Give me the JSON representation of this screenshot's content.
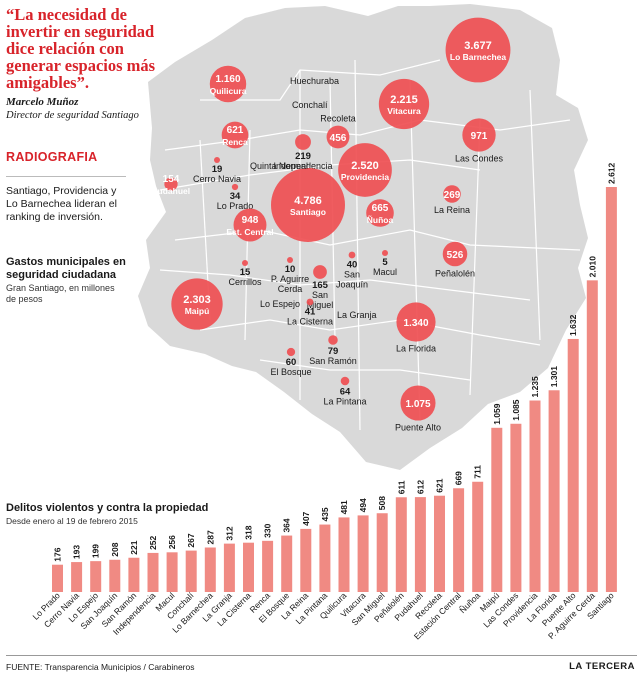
{
  "quote": "“La necesidad de invertir en seguridad dice relación con generar espacios más amigables”.",
  "author": "Marcelo Muñoz",
  "role": "Director de seguridad Santiago",
  "section": "RADIOGRAFIA",
  "intro": "Santiago, Providencia y Lo Barnechea lideran el ranking de inversión.",
  "spending_title": "Gastos municipales en seguridad ciudadana",
  "spending_sub": "Gran Santiago, en millones de pesos",
  "chart_title": "Delitos violentos y contra la propiedad",
  "chart_sub": "Desde enero al 19 de febrero 2015",
  "source": "FUENTE: Transparencia Municipios / Carabineros",
  "brand": "LA TERCERA",
  "colors": {
    "accent": "#d8232a",
    "bubble": "#ef4f52",
    "bar": "#f08a83",
    "map": "#d9d9d9"
  },
  "chart_data": [
    {
      "type": "bar",
      "title": "Delitos violentos y contra la propiedad",
      "subtitle": "Desde enero al 19 de febrero 2015",
      "categories": [
        "Lo Prado",
        "Cerro Navia",
        "Lo Espejo",
        "San Joaquín",
        "San Ramón",
        "Independencia",
        "Macul",
        "Conchalí",
        "Lo Barnechea",
        "La Granja",
        "La Cisterna",
        "Renca",
        "El Bosque",
        "La Reina",
        "La Pintana",
        "Quilicura",
        "Vitacura",
        "San Miguel",
        "Peñalolén",
        "Pudahuel",
        "Recoleta",
        "Estación Central",
        "Ñuñoa",
        "Maipú",
        "Las Condes",
        "Providencia",
        "La Florida",
        "Puente Alto",
        "P. Aguirre Cerda",
        "Santiago"
      ],
      "values": [
        176,
        193,
        199,
        208,
        221,
        252,
        256,
        267,
        287,
        312,
        318,
        330,
        364,
        407,
        435,
        481,
        494,
        508,
        611,
        612,
        621,
        669,
        711,
        1059,
        1085,
        1235,
        1301,
        1632,
        2010,
        2612
      ],
      "value_labels": [
        "176",
        "193",
        "199",
        "208",
        "221",
        "252",
        "256",
        "267",
        "287",
        "312",
        "318",
        "330",
        "364",
        "407",
        "435",
        "481",
        "494",
        "508",
        "611",
        "612",
        "621",
        "669",
        "711",
        "1.059",
        "1.085",
        "1.235",
        "1.301",
        "1.632",
        "2.010",
        "2.612"
      ],
      "ylim": [
        0,
        2612
      ],
      "grid": false,
      "legend": "none"
    },
    {
      "type": "bubble-map",
      "title": "Gastos municipales en seguridad ciudadana",
      "subtitle": "Gran Santiago, en millones de pesos",
      "points": [
        {
          "name": "Lo Barnechea",
          "value": 3677,
          "label": "3.677"
        },
        {
          "name": "Quilicura",
          "value": 1160,
          "label": "1.160"
        },
        {
          "name": "Vitacura",
          "value": 2215,
          "label": "2.215"
        },
        {
          "name": "Renca",
          "value": 621,
          "label": "621"
        },
        {
          "name": "Independencia",
          "value": 219,
          "label": "219"
        },
        {
          "name": "Recoleta",
          "value": 456,
          "label": "456"
        },
        {
          "name": "Las Condes",
          "value": 971,
          "label": "971"
        },
        {
          "name": "Cerro Navia",
          "value": 19,
          "label": "19"
        },
        {
          "name": "Pudahuel",
          "value": 154,
          "label": "154"
        },
        {
          "name": "Lo Prado",
          "value": 34,
          "label": "34"
        },
        {
          "name": "Providencia",
          "value": 2520,
          "label": "2.520"
        },
        {
          "name": "Santiago",
          "value": 4786,
          "label": "4.786"
        },
        {
          "name": "Ñuñoa",
          "value": 665,
          "label": "665"
        },
        {
          "name": "La Reina",
          "value": 269,
          "label": "269"
        },
        {
          "name": "Est. Central",
          "value": 948,
          "label": "948"
        },
        {
          "name": "Cerrillos",
          "value": 15,
          "label": "15"
        },
        {
          "name": "P. Aguirre Cerda",
          "value": 10,
          "label": "10"
        },
        {
          "name": "San Miguel",
          "value": 165,
          "label": "165"
        },
        {
          "name": "San Joaquín",
          "value": 40,
          "label": "40"
        },
        {
          "name": "Macul",
          "value": 5,
          "label": "5"
        },
        {
          "name": "Peñalolén",
          "value": 526,
          "label": "526"
        },
        {
          "name": "Maipú",
          "value": 2303,
          "label": "2.303"
        },
        {
          "name": "La Cisterna",
          "value": 41,
          "label": "41"
        },
        {
          "name": "San Ramón",
          "value": 79,
          "label": "79"
        },
        {
          "name": "La Florida",
          "value": 1340,
          "label": "1.340"
        },
        {
          "name": "El Bosque",
          "value": 60,
          "label": "60"
        },
        {
          "name": "La Pintana",
          "value": 64,
          "label": "64"
        },
        {
          "name": "Puente Alto",
          "value": 1075,
          "label": "1.075"
        }
      ],
      "place_names": [
        "Huechuraba",
        "Conchalí",
        "Quinta Normal",
        "Lo Espejo",
        "La Granja"
      ]
    }
  ]
}
